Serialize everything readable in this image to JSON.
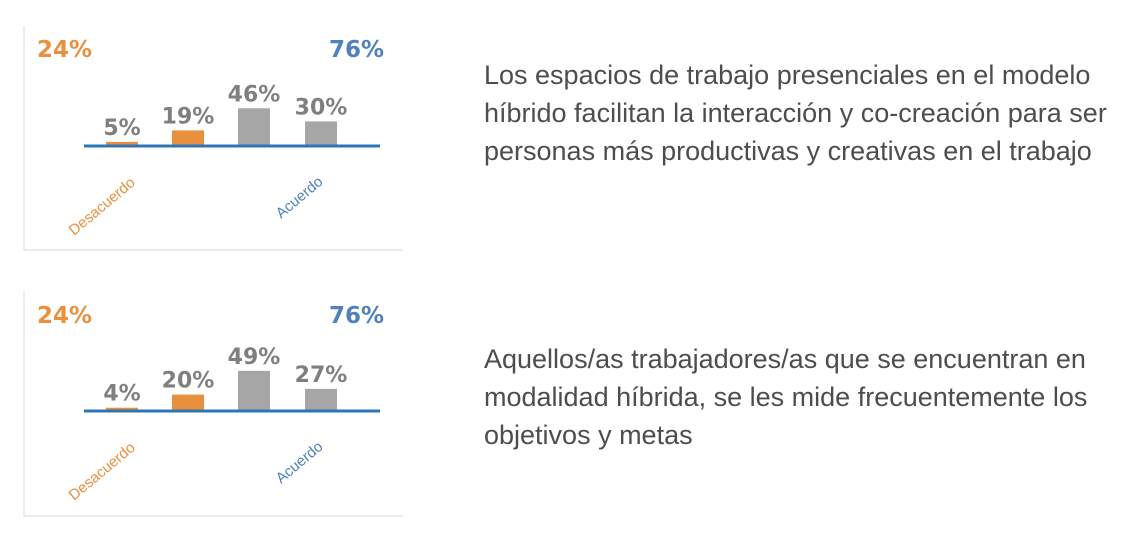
{
  "chart_data": [
    {
      "type": "bar",
      "categories": [
        "",
        "",
        "",
        ""
      ],
      "values": [
        5,
        19,
        46,
        30
      ],
      "value_labels": [
        "5%",
        "19%",
        "46%",
        "30%"
      ],
      "disagree_total": "24%",
      "agree_total": "76%",
      "disagree_label": "Desacuerdo",
      "agree_label": "Acuerdo",
      "statement": "Los espacios de trabajo presenciales en el modelo híbrido facilitan la interacción y co-creación para ser personas más productivas y creativas en el trabajo",
      "ylim": [
        0,
        50
      ],
      "grid": false,
      "colors": [
        "#e8903e",
        "#e8903e",
        "#a6a6a6",
        "#a6a6a6"
      ]
    },
    {
      "type": "bar",
      "categories": [
        "",
        "",
        "",
        ""
      ],
      "values": [
        4,
        20,
        49,
        27
      ],
      "value_labels": [
        "4%",
        "20%",
        "49%",
        "27%"
      ],
      "disagree_total": "24%",
      "agree_total": "76%",
      "disagree_label": "Desacuerdo",
      "agree_label": "Acuerdo",
      "statement": "Aquellos/as trabajadores/as que se encuentran en modalidad híbrida, se les mide frecuentemente los objetivos y metas",
      "ylim": [
        0,
        50
      ],
      "grid": false,
      "colors": [
        "#e8903e",
        "#e8903e",
        "#a6a6a6",
        "#a6a6a6"
      ]
    }
  ],
  "theme": {
    "disagree_color": "#e8903e",
    "agree_color": "#4f81bd",
    "value_color": "#7f7f7f",
    "baseline_color": "#2e75b6",
    "frame_color": "#d9d9d9"
  }
}
